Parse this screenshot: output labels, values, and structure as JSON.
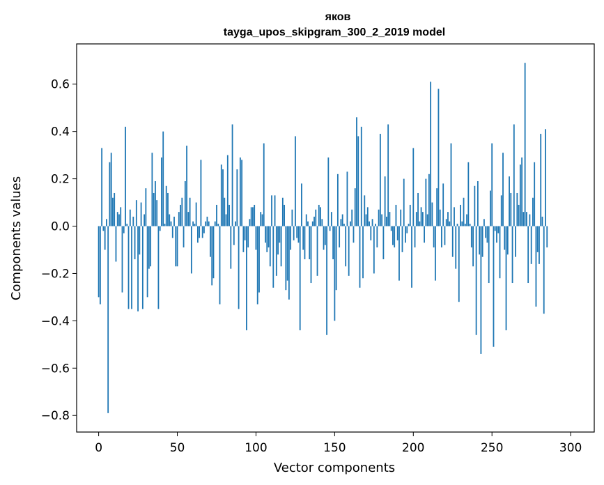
{
  "chart_data": {
    "type": "bar",
    "title": "яков",
    "subtitle": "tayga_upos_skipgram_300_2_2019 model",
    "xlabel": "Vector components",
    "ylabel": "Components values",
    "xlim": [
      -14,
      315
    ],
    "ylim": [
      -0.87,
      0.77
    ],
    "xticks": [
      0,
      50,
      100,
      150,
      200,
      250,
      300
    ],
    "yticks": [
      -0.8,
      -0.6,
      -0.4,
      -0.2,
      0.0,
      0.2,
      0.4,
      0.6
    ],
    "ytick_labels": [
      "−0.8",
      "−0.6",
      "−0.4",
      "−0.2",
      "0.0",
      "0.2",
      "0.4",
      "0.6"
    ],
    "bar_color": "#1f77b4",
    "values": [
      -0.3,
      -0.33,
      0.33,
      -0.02,
      -0.1,
      0.03,
      -0.79,
      0.27,
      0.31,
      0.12,
      0.14,
      -0.15,
      0.06,
      0.05,
      0.08,
      -0.28,
      -0.03,
      0.42,
      0.01,
      -0.35,
      0.07,
      -0.35,
      0.04,
      -0.14,
      0.11,
      -0.36,
      -0.12,
      0.1,
      -0.35,
      0.05,
      0.16,
      -0.3,
      -0.18,
      -0.17,
      0.31,
      0.14,
      0.19,
      0.11,
      -0.35,
      -0.02,
      0.29,
      0.4,
      0.01,
      0.17,
      0.14,
      0.05,
      0.02,
      -0.05,
      0.04,
      -0.17,
      -0.17,
      0.06,
      0.09,
      0.12,
      -0.09,
      0.19,
      0.34,
      0.06,
      0.12,
      -0.2,
      0.02,
      0.01,
      0.1,
      -0.07,
      -0.05,
      0.28,
      -0.05,
      -0.03,
      0.02,
      0.04,
      0.02,
      -0.13,
      -0.25,
      -0.22,
      0.02,
      0.09,
      0.01,
      -0.33,
      0.26,
      0.24,
      0.12,
      0.05,
      0.3,
      0.09,
      -0.18,
      0.43,
      -0.08,
      0.02,
      0.24,
      -0.35,
      0.29,
      0.28,
      -0.11,
      -0.06,
      -0.44,
      -0.09,
      0.03,
      0.08,
      0.08,
      0.09,
      -0.1,
      -0.33,
      -0.28,
      0.06,
      0.05,
      0.35,
      -0.07,
      -0.11,
      -0.09,
      -0.17,
      0.13,
      -0.26,
      0.13,
      -0.21,
      -0.12,
      -0.07,
      -0.17,
      0.12,
      0.09,
      -0.27,
      -0.23,
      -0.31,
      -0.1,
      0.07,
      -0.06,
      0.38,
      -0.05,
      -0.07,
      -0.44,
      0.18,
      -0.1,
      -0.14,
      0.05,
      0.02,
      -0.14,
      -0.24,
      0.02,
      0.04,
      0.07,
      -0.21,
      0.09,
      0.08,
      0.03,
      -0.1,
      -0.08,
      -0.46,
      0.29,
      -0.02,
      0.06,
      -0.14,
      -0.4,
      -0.27,
      0.22,
      -0.09,
      0.03,
      0.05,
      0.01,
      -0.17,
      0.23,
      -0.21,
      0.02,
      0.07,
      -0.07,
      0.16,
      0.46,
      0.38,
      -0.26,
      0.42,
      -0.22,
      0.13,
      0.05,
      0.08,
      0.02,
      -0.06,
      0.03,
      -0.2,
      0.01,
      -0.09,
      0.07,
      0.39,
      0.05,
      -0.14,
      0.21,
      0.04,
      0.43,
      0.06,
      -0.02,
      -0.08,
      -0.09,
      0.09,
      -0.06,
      -0.23,
      0.07,
      -0.11,
      0.2,
      -0.07,
      -0.03,
      0.01,
      0.09,
      -0.26,
      0.33,
      -0.09,
      0.06,
      0.14,
      0.02,
      0.08,
      0.06,
      -0.07,
      0.2,
      0.05,
      0.22,
      0.61,
      0.1,
      -0.09,
      -0.23,
      0.16,
      0.58,
      0.07,
      -0.09,
      0.18,
      -0.08,
      0.03,
      0.06,
      0.02,
      0.35,
      -0.13,
      0.08,
      -0.18,
      0.01,
      -0.32,
      0.09,
      0.02,
      0.12,
      0.01,
      0.05,
      0.27,
      0.01,
      -0.09,
      -0.17,
      0.17,
      -0.46,
      0.19,
      -0.12,
      -0.54,
      -0.13,
      0.03,
      -0.05,
      -0.07,
      -0.24,
      0.15,
      0.35,
      -0.51,
      -0.02,
      -0.07,
      -0.03,
      -0.22,
      0.13,
      0.31,
      -0.1,
      -0.44,
      -0.12,
      0.21,
      0.14,
      -0.24,
      0.43,
      -0.13,
      0.14,
      0.09,
      0.26,
      0.29,
      0.06,
      0.69,
      0.06,
      -0.24,
      0.05,
      -0.16,
      0.12,
      0.27,
      -0.34,
      -0.11,
      -0.16,
      0.39,
      0.04,
      -0.37,
      0.41,
      -0.09
    ]
  }
}
